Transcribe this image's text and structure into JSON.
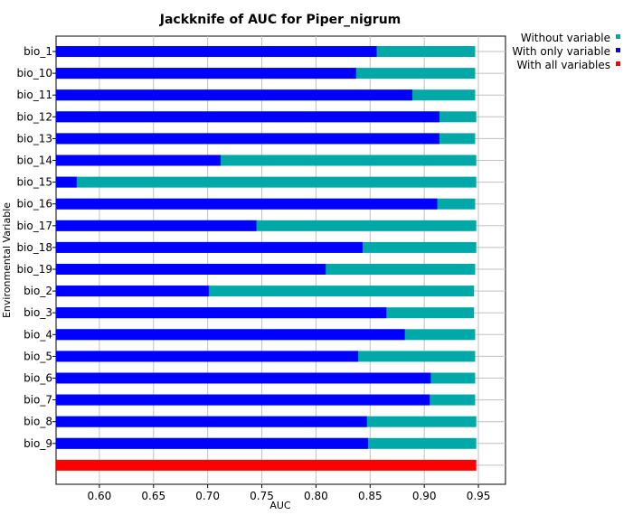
{
  "chart_data": {
    "type": "bar",
    "title": "Jackknife of AUC for Piper_nigrum",
    "xlabel": "AUC",
    "ylabel": "Environmental Variable",
    "xlim": [
      0.56,
      0.975
    ],
    "xticks": [
      0.6,
      0.65,
      0.7,
      0.75,
      0.8,
      0.85,
      0.9,
      0.95
    ],
    "xtick_labels": [
      "0.60",
      "0.65",
      "0.70",
      "0.75",
      "0.80",
      "0.85",
      "0.90",
      "0.95"
    ],
    "grid": true,
    "legend_position": "top-right",
    "categories": [
      "bio_1",
      "bio_10",
      "bio_11",
      "bio_12",
      "bio_13",
      "bio_14",
      "bio_15",
      "bio_16",
      "bio_17",
      "bio_18",
      "bio_19",
      "bio_2",
      "bio_3",
      "bio_4",
      "bio_5",
      "bio_6",
      "bio_7",
      "bio_8",
      "bio_9"
    ],
    "series": [
      {
        "name": "Without variable",
        "color": "#00a8a8",
        "values": [
          0.947,
          0.947,
          0.947,
          0.948,
          0.947,
          0.948,
          0.948,
          0.947,
          0.948,
          0.948,
          0.947,
          0.946,
          0.946,
          0.947,
          0.947,
          0.947,
          0.947,
          0.948,
          0.948
        ]
      },
      {
        "name": "With only variable",
        "color": "#0000ff",
        "values": [
          0.856,
          0.837,
          0.889,
          0.914,
          0.914,
          0.712,
          0.579,
          0.912,
          0.745,
          0.843,
          0.809,
          0.701,
          0.865,
          0.882,
          0.839,
          0.906,
          0.905,
          0.847,
          0.848
        ]
      }
    ],
    "all_variables": {
      "name": "With all variables",
      "color": "#ff0000",
      "value": 0.948
    }
  }
}
